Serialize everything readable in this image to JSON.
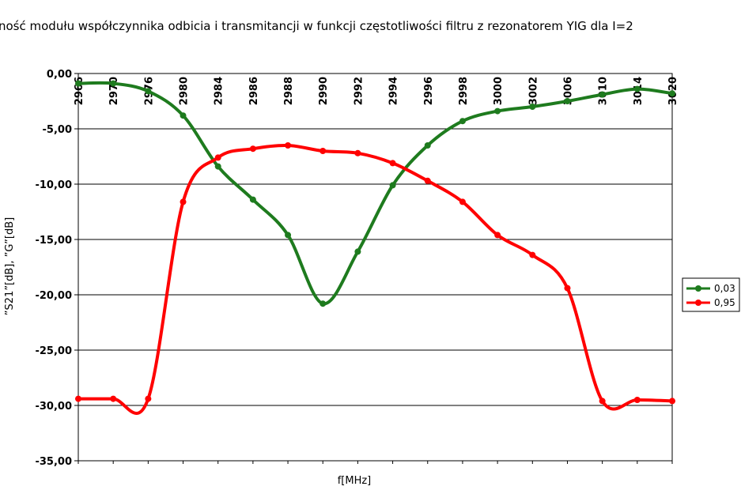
{
  "chart_data": {
    "type": "line",
    "title": "ność modułu współczynnika odbicia i transmitancji w funkcji częstotliwości filtru z rezonatorem YIG dla I=2",
    "xlabel": "f[MHz]",
    "ylabel": "”S21”[dB], ”G”[dB]",
    "categories": [
      "2966",
      "2970",
      "2976",
      "2980",
      "2984",
      "2986",
      "2988",
      "2990",
      "2992",
      "2994",
      "2996",
      "2998",
      "3000",
      "3002",
      "3006",
      "3010",
      "3014",
      "3020"
    ],
    "y_tick_labels": [
      "0,00",
      "-5,00",
      "-10,00",
      "-15,00",
      "-20,00",
      "-25,00",
      "-30,00",
      "-35,00"
    ],
    "ylim": [
      -35,
      0
    ],
    "grid": true,
    "legend_position": "right",
    "series": [
      {
        "name": "0,03",
        "color": "#1e7b1e",
        "values": [
          -0.9,
          -0.9,
          -1.6,
          -3.8,
          -8.4,
          -11.4,
          -14.6,
          -20.8,
          -16.1,
          -10.1,
          -6.5,
          -4.3,
          -3.4,
          -3.0,
          -2.5,
          -1.9,
          -1.4,
          -1.8
        ]
      },
      {
        "name": "0,95",
        "color": "#ff0000",
        "values": [
          -29.4,
          -29.4,
          -29.4,
          -11.6,
          -7.6,
          -6.8,
          -6.5,
          -7.0,
          -7.2,
          -8.1,
          -9.7,
          -11.6,
          -14.6,
          -16.4,
          -19.4,
          -29.6,
          -29.5,
          -29.6
        ]
      }
    ]
  }
}
